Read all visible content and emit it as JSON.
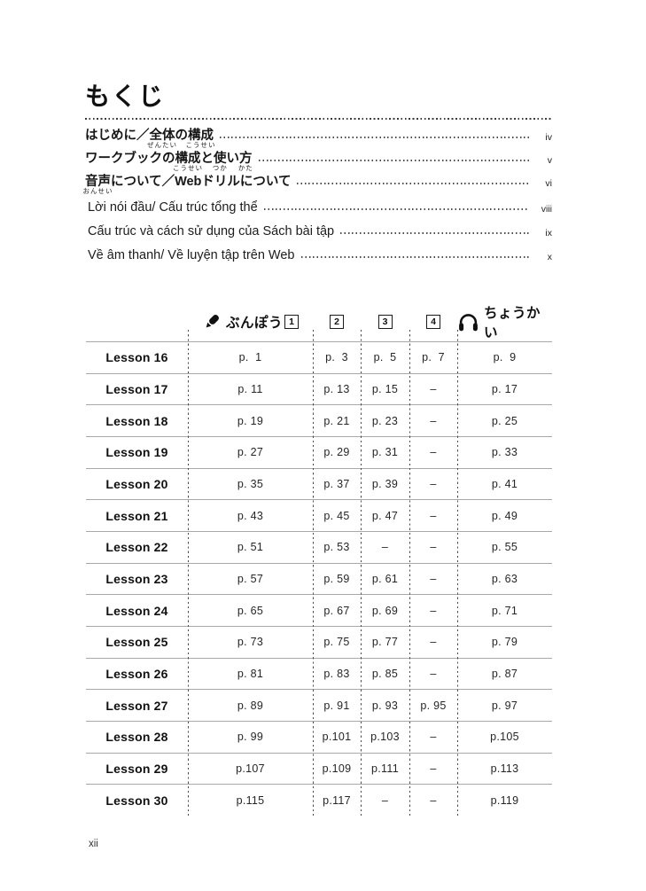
{
  "page": {
    "title": "もくじ",
    "footer_page_number": "xii",
    "colors": {
      "ink": "#1a1a1a",
      "row_line_gray": "#a9a9a9",
      "dashed_line": "#4a4a4a"
    }
  },
  "toc": {
    "japanese_entries": [
      {
        "segments": [
          {
            "text": "はじめに／"
          },
          {
            "text": "全体",
            "furigana": "ぜんたい"
          },
          {
            "text": "の"
          },
          {
            "text": "構成",
            "furigana": "こうせい"
          }
        ],
        "page": "iv"
      },
      {
        "segments": [
          {
            "text": "ワークブックの"
          },
          {
            "text": "構成",
            "furigana": "こうせい"
          },
          {
            "text": "と"
          },
          {
            "text": "使",
            "furigana": "つか"
          },
          {
            "text": "い"
          },
          {
            "text": "方",
            "furigana": "かた"
          }
        ],
        "page": "v"
      },
      {
        "segments": [
          {
            "text": "音声",
            "furigana": "おんせい"
          },
          {
            "text": "について／Webドリルについて"
          }
        ],
        "page": "vi"
      }
    ],
    "vietnamese_entries": [
      {
        "text": "Lời nói đầu/ Cấu trúc tổng thể",
        "page": "viii"
      },
      {
        "text": "Cấu trúc và cách sử dụng của Sách bài tập",
        "page": "ix"
      },
      {
        "text": "Về âm thanh/ Về luyện tập trên Web",
        "page": "x"
      }
    ]
  },
  "table": {
    "header": {
      "grammar_icon": "pencil-icon",
      "grammar_label": "ぶんぽう",
      "part_labels": [
        "1",
        "2",
        "3",
        "4"
      ],
      "listening_icon": "headphones-icon",
      "listening_label": "ちょうかい"
    },
    "rows": [
      {
        "lesson": "Lesson 16",
        "pages": [
          "p.  1",
          "p.  3",
          "p.  5",
          "p.  7",
          "p.  9"
        ]
      },
      {
        "lesson": "Lesson 17",
        "pages": [
          "p. 11",
          "p. 13",
          "p. 15",
          "–",
          "p. 17"
        ]
      },
      {
        "lesson": "Lesson 18",
        "pages": [
          "p. 19",
          "p. 21",
          "p. 23",
          "–",
          "p. 25"
        ]
      },
      {
        "lesson": "Lesson 19",
        "pages": [
          "p. 27",
          "p. 29",
          "p. 31",
          "–",
          "p. 33"
        ]
      },
      {
        "lesson": "Lesson 20",
        "pages": [
          "p. 35",
          "p. 37",
          "p. 39",
          "–",
          "p. 41"
        ]
      },
      {
        "lesson": "Lesson 21",
        "pages": [
          "p. 43",
          "p. 45",
          "p. 47",
          "–",
          "p. 49"
        ]
      },
      {
        "lesson": "Lesson 22",
        "pages": [
          "p. 51",
          "p. 53",
          "–",
          "–",
          "p. 55"
        ]
      },
      {
        "lesson": "Lesson 23",
        "pages": [
          "p. 57",
          "p. 59",
          "p. 61",
          "–",
          "p. 63"
        ]
      },
      {
        "lesson": "Lesson 24",
        "pages": [
          "p. 65",
          "p. 67",
          "p. 69",
          "–",
          "p. 71"
        ]
      },
      {
        "lesson": "Lesson 25",
        "pages": [
          "p. 73",
          "p. 75",
          "p. 77",
          "–",
          "p. 79"
        ]
      },
      {
        "lesson": "Lesson 26",
        "pages": [
          "p. 81",
          "p. 83",
          "p. 85",
          "–",
          "p. 87"
        ]
      },
      {
        "lesson": "Lesson 27",
        "pages": [
          "p. 89",
          "p. 91",
          "p. 93",
          "p. 95",
          "p. 97"
        ]
      },
      {
        "lesson": "Lesson 28",
        "pages": [
          "p. 99",
          "p.101",
          "p.103",
          "–",
          "p.105"
        ]
      },
      {
        "lesson": "Lesson 29",
        "pages": [
          "p.107",
          "p.109",
          "p.111",
          "–",
          "p.113"
        ]
      },
      {
        "lesson": "Lesson 30",
        "pages": [
          "p.115",
          "p.117",
          "–",
          "–",
          "p.119"
        ]
      }
    ]
  }
}
